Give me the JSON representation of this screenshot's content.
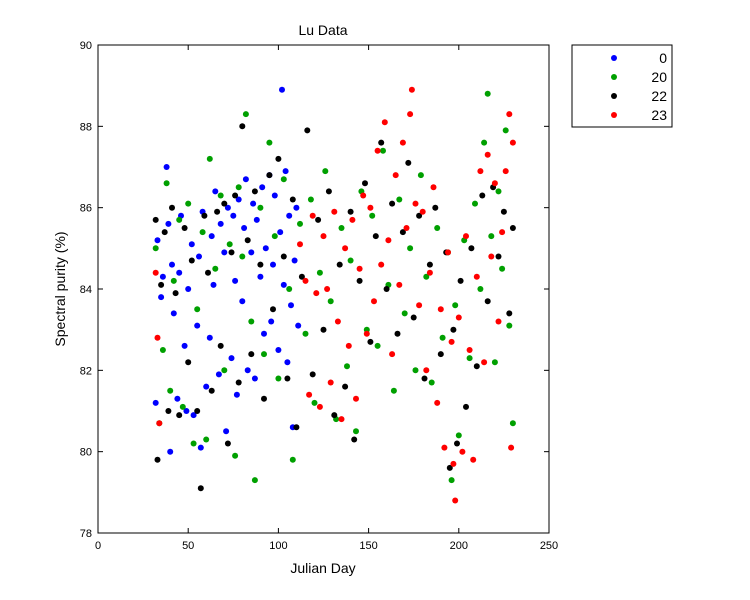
{
  "chart_data": {
    "type": "scatter",
    "title": "Lu Data",
    "xlabel": "Julian Day",
    "ylabel": "Spectral purity (%)",
    "xlim": [
      0,
      250
    ],
    "ylim": [
      78,
      90
    ],
    "xticks": [
      0,
      50,
      100,
      150,
      200,
      250
    ],
    "yticks": [
      78,
      80,
      82,
      84,
      86,
      88,
      90
    ],
    "grid": false,
    "legend_position": "outside-top-right",
    "series": [
      {
        "name": "0",
        "color": "#0000ff",
        "points": [
          [
            32,
            81.2
          ],
          [
            33,
            85.2
          ],
          [
            35,
            83.8
          ],
          [
            36,
            84.3
          ],
          [
            38,
            87.0
          ],
          [
            39,
            85.6
          ],
          [
            40,
            80.0
          ],
          [
            41,
            84.6
          ],
          [
            42,
            83.4
          ],
          [
            44,
            81.3
          ],
          [
            45,
            84.4
          ],
          [
            46,
            85.8
          ],
          [
            48,
            82.6
          ],
          [
            49,
            81.0
          ],
          [
            50,
            84.0
          ],
          [
            52,
            85.1
          ],
          [
            53,
            80.9
          ],
          [
            55,
            83.1
          ],
          [
            56,
            84.8
          ],
          [
            57,
            80.1
          ],
          [
            58,
            85.9
          ],
          [
            60,
            81.6
          ],
          [
            62,
            82.8
          ],
          [
            63,
            85.3
          ],
          [
            64,
            84.1
          ],
          [
            65,
            86.4
          ],
          [
            67,
            81.9
          ],
          [
            68,
            85.6
          ],
          [
            70,
            84.9
          ],
          [
            71,
            80.5
          ],
          [
            72,
            86.0
          ],
          [
            74,
            82.3
          ],
          [
            75,
            85.8
          ],
          [
            76,
            84.2
          ],
          [
            77,
            81.4
          ],
          [
            78,
            86.2
          ],
          [
            80,
            83.7
          ],
          [
            81,
            85.5
          ],
          [
            82,
            86.7
          ],
          [
            83,
            82.0
          ],
          [
            85,
            84.9
          ],
          [
            86,
            86.1
          ],
          [
            87,
            81.8
          ],
          [
            88,
            85.7
          ],
          [
            90,
            84.3
          ],
          [
            91,
            86.5
          ],
          [
            92,
            82.9
          ],
          [
            93,
            85.0
          ],
          [
            95,
            86.8
          ],
          [
            96,
            83.2
          ],
          [
            97,
            84.6
          ],
          [
            98,
            86.3
          ],
          [
            100,
            82.5
          ],
          [
            101,
            85.4
          ],
          [
            102,
            88.9
          ],
          [
            103,
            84.1
          ],
          [
            104,
            86.9
          ],
          [
            105,
            82.2
          ],
          [
            106,
            85.8
          ],
          [
            107,
            83.6
          ],
          [
            108,
            80.6
          ],
          [
            109,
            84.7
          ],
          [
            110,
            86.0
          ],
          [
            111,
            83.1
          ]
        ]
      },
      {
        "name": "20",
        "color": "#00a000",
        "points": [
          [
            32,
            85.0
          ],
          [
            34,
            80.7
          ],
          [
            36,
            82.5
          ],
          [
            38,
            86.6
          ],
          [
            40,
            81.5
          ],
          [
            42,
            84.2
          ],
          [
            45,
            85.7
          ],
          [
            47,
            81.1
          ],
          [
            50,
            86.1
          ],
          [
            53,
            80.2
          ],
          [
            55,
            83.5
          ],
          [
            58,
            85.4
          ],
          [
            60,
            80.3
          ],
          [
            62,
            87.2
          ],
          [
            65,
            84.5
          ],
          [
            68,
            86.3
          ],
          [
            70,
            82.0
          ],
          [
            73,
            85.1
          ],
          [
            76,
            79.9
          ],
          [
            78,
            86.5
          ],
          [
            80,
            84.8
          ],
          [
            82,
            88.3
          ],
          [
            85,
            83.2
          ],
          [
            87,
            79.3
          ],
          [
            90,
            86.0
          ],
          [
            92,
            82.4
          ],
          [
            95,
            87.6
          ],
          [
            98,
            85.3
          ],
          [
            100,
            81.8
          ],
          [
            103,
            86.7
          ],
          [
            106,
            84.0
          ],
          [
            108,
            79.8
          ],
          [
            112,
            85.6
          ],
          [
            115,
            82.9
          ],
          [
            118,
            86.2
          ],
          [
            120,
            81.2
          ],
          [
            123,
            84.4
          ],
          [
            126,
            86.9
          ],
          [
            129,
            83.7
          ],
          [
            132,
            80.8
          ],
          [
            135,
            85.5
          ],
          [
            138,
            82.1
          ],
          [
            140,
            84.7
          ],
          [
            143,
            80.5
          ],
          [
            146,
            86.4
          ],
          [
            149,
            83.0
          ],
          [
            152,
            85.8
          ],
          [
            155,
            82.6
          ],
          [
            158,
            87.4
          ],
          [
            161,
            84.1
          ],
          [
            164,
            81.5
          ],
          [
            167,
            86.2
          ],
          [
            170,
            83.4
          ],
          [
            173,
            85.0
          ],
          [
            176,
            82.0
          ],
          [
            179,
            86.8
          ],
          [
            182,
            84.3
          ],
          [
            185,
            81.7
          ],
          [
            188,
            85.5
          ],
          [
            191,
            82.8
          ],
          [
            194,
            84.9
          ],
          [
            196,
            79.3
          ],
          [
            198,
            83.6
          ],
          [
            200,
            80.4
          ],
          [
            203,
            85.2
          ],
          [
            206,
            82.3
          ],
          [
            209,
            86.1
          ],
          [
            212,
            84.0
          ],
          [
            214,
            87.6
          ],
          [
            216,
            88.8
          ],
          [
            218,
            85.3
          ],
          [
            220,
            82.2
          ],
          [
            222,
            86.4
          ],
          [
            224,
            84.5
          ],
          [
            226,
            87.9
          ],
          [
            228,
            83.1
          ],
          [
            230,
            80.7
          ]
        ]
      },
      {
        "name": "22",
        "color": "#000000",
        "points": [
          [
            32,
            85.7
          ],
          [
            33,
            79.8
          ],
          [
            35,
            84.1
          ],
          [
            37,
            85.4
          ],
          [
            39,
            81.0
          ],
          [
            41,
            86.0
          ],
          [
            43,
            83.9
          ],
          [
            45,
            80.9
          ],
          [
            48,
            85.5
          ],
          [
            50,
            82.2
          ],
          [
            52,
            84.7
          ],
          [
            55,
            81.0
          ],
          [
            57,
            79.1
          ],
          [
            59,
            85.8
          ],
          [
            61,
            84.4
          ],
          [
            63,
            81.5
          ],
          [
            66,
            85.9
          ],
          [
            68,
            82.6
          ],
          [
            70,
            86.1
          ],
          [
            72,
            80.2
          ],
          [
            74,
            84.9
          ],
          [
            76,
            86.3
          ],
          [
            78,
            81.7
          ],
          [
            80,
            88.0
          ],
          [
            83,
            85.2
          ],
          [
            85,
            82.4
          ],
          [
            87,
            86.4
          ],
          [
            90,
            84.6
          ],
          [
            92,
            81.3
          ],
          [
            95,
            86.8
          ],
          [
            97,
            83.5
          ],
          [
            100,
            87.2
          ],
          [
            103,
            84.8
          ],
          [
            105,
            81.8
          ],
          [
            108,
            86.2
          ],
          [
            110,
            80.6
          ],
          [
            113,
            84.3
          ],
          [
            116,
            87.9
          ],
          [
            119,
            81.9
          ],
          [
            122,
            85.7
          ],
          [
            125,
            83.0
          ],
          [
            128,
            86.4
          ],
          [
            131,
            80.9
          ],
          [
            134,
            84.6
          ],
          [
            137,
            81.6
          ],
          [
            140,
            85.9
          ],
          [
            142,
            80.3
          ],
          [
            145,
            84.2
          ],
          [
            148,
            86.6
          ],
          [
            151,
            82.7
          ],
          [
            154,
            85.3
          ],
          [
            157,
            87.6
          ],
          [
            160,
            84.0
          ],
          [
            163,
            86.1
          ],
          [
            166,
            82.9
          ],
          [
            169,
            85.4
          ],
          [
            172,
            87.1
          ],
          [
            175,
            83.3
          ],
          [
            178,
            85.8
          ],
          [
            181,
            81.8
          ],
          [
            184,
            84.6
          ],
          [
            187,
            86.0
          ],
          [
            190,
            82.4
          ],
          [
            193,
            84.9
          ],
          [
            195,
            79.6
          ],
          [
            197,
            83.0
          ],
          [
            199,
            80.2
          ],
          [
            201,
            84.2
          ],
          [
            204,
            81.1
          ],
          [
            207,
            85.0
          ],
          [
            210,
            82.1
          ],
          [
            213,
            86.3
          ],
          [
            216,
            83.7
          ],
          [
            219,
            86.5
          ],
          [
            222,
            84.8
          ],
          [
            225,
            85.9
          ],
          [
            228,
            83.4
          ],
          [
            230,
            85.5
          ]
        ]
      },
      {
        "name": "23",
        "color": "#ff0000",
        "points": [
          [
            32,
            84.4
          ],
          [
            33,
            82.8
          ],
          [
            34,
            80.7
          ],
          [
            112,
            85.1
          ],
          [
            115,
            84.2
          ],
          [
            117,
            81.4
          ],
          [
            119,
            85.8
          ],
          [
            121,
            83.9
          ],
          [
            123,
            81.1
          ],
          [
            125,
            85.3
          ],
          [
            127,
            84.0
          ],
          [
            129,
            81.7
          ],
          [
            131,
            85.9
          ],
          [
            133,
            83.2
          ],
          [
            135,
            80.8
          ],
          [
            137,
            85.0
          ],
          [
            139,
            82.6
          ],
          [
            141,
            85.7
          ],
          [
            143,
            81.3
          ],
          [
            145,
            84.5
          ],
          [
            147,
            86.3
          ],
          [
            149,
            82.9
          ],
          [
            151,
            86.0
          ],
          [
            153,
            83.7
          ],
          [
            155,
            87.4
          ],
          [
            157,
            84.6
          ],
          [
            159,
            88.1
          ],
          [
            161,
            85.2
          ],
          [
            163,
            82.4
          ],
          [
            165,
            86.8
          ],
          [
            167,
            84.1
          ],
          [
            169,
            87.6
          ],
          [
            171,
            85.5
          ],
          [
            173,
            88.3
          ],
          [
            174,
            88.9
          ],
          [
            176,
            86.1
          ],
          [
            178,
            83.6
          ],
          [
            180,
            85.9
          ],
          [
            182,
            82.0
          ],
          [
            184,
            84.4
          ],
          [
            186,
            86.5
          ],
          [
            188,
            81.2
          ],
          [
            190,
            83.5
          ],
          [
            192,
            80.1
          ],
          [
            194,
            84.9
          ],
          [
            196,
            82.7
          ],
          [
            197,
            79.7
          ],
          [
            198,
            78.8
          ],
          [
            200,
            83.3
          ],
          [
            202,
            80.0
          ],
          [
            204,
            85.3
          ],
          [
            206,
            82.5
          ],
          [
            208,
            79.8
          ],
          [
            210,
            84.3
          ],
          [
            212,
            86.9
          ],
          [
            214,
            82.2
          ],
          [
            216,
            87.3
          ],
          [
            218,
            84.8
          ],
          [
            220,
            86.6
          ],
          [
            222,
            83.2
          ],
          [
            224,
            85.4
          ],
          [
            226,
            86.9
          ],
          [
            228,
            88.3
          ],
          [
            229,
            80.1
          ],
          [
            230,
            87.6
          ]
        ]
      }
    ]
  }
}
